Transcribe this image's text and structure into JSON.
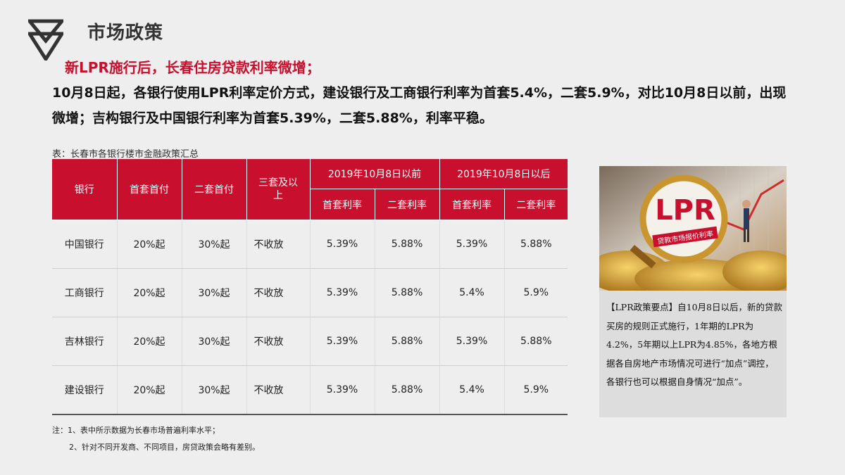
{
  "header": {
    "title": "市场政策",
    "subtitle": "新LPR施行后，长春住房贷款利率微增；",
    "description": "10月8日起，各银行使用LPR利率定价方式，建设银行及工商银行利率为首套5.4%，二套5.9%，对比10月8日以前，出现微增；吉构银行及中国银行利率为首套5.39%，二套5.88%，利率平稳。"
  },
  "table": {
    "caption": "表：长春市各银行楼市金融政策汇总",
    "headers": {
      "bank": "银行",
      "first_down": "首套首付",
      "second_down": "二套首付",
      "third": "三套及以上",
      "before": "2019年10月8日以前",
      "after": "2019年10月8日以后",
      "first_rate": "首套利率",
      "second_rate": "二套利率"
    },
    "rows": [
      {
        "bank": "中国银行",
        "first_down": "20%起",
        "second_down": "30%起",
        "third": "不收放",
        "before_first": "5.39%",
        "before_second": "5.88%",
        "after_first": "5.39%",
        "after_second": "5.88%"
      },
      {
        "bank": "工商银行",
        "first_down": "20%起",
        "second_down": "30%起",
        "third": "不收放",
        "before_first": "5.39%",
        "before_second": "5.88%",
        "after_first": "5.4%",
        "after_second": "5.9%"
      },
      {
        "bank": "吉林银行",
        "first_down": "20%起",
        "second_down": "30%起",
        "third": "不收放",
        "before_first": "5.39%",
        "before_second": "5.88%",
        "after_first": "5.39%",
        "after_second": "5.88%"
      },
      {
        "bank": "建设银行",
        "first_down": "20%起",
        "second_down": "30%起",
        "third": "不收放",
        "before_first": "5.39%",
        "before_second": "5.88%",
        "after_first": "5.4%",
        "after_second": "5.9%"
      }
    ]
  },
  "notes": {
    "note1": "注：1、表中所示数据为长春市场普遍利率水平；",
    "note2": "2、针对不同开发商、不同项目，房贷政策会略有差别。"
  },
  "card": {
    "image_text": "LPR",
    "image_subtext": "贷款市场报价利率",
    "text": "【LPR政策要点】自10月8日以后，新的贷款买房的规则正式施行，1年期的LPR为4.2%，5年期以上LPR为4.85%，各地方根据各自房地产市场情况可进行“加点”调控，各银行也可以根据自身情况“加点”。"
  },
  "colors": {
    "accent": "#c8102e",
    "background": "#eeeeee"
  }
}
